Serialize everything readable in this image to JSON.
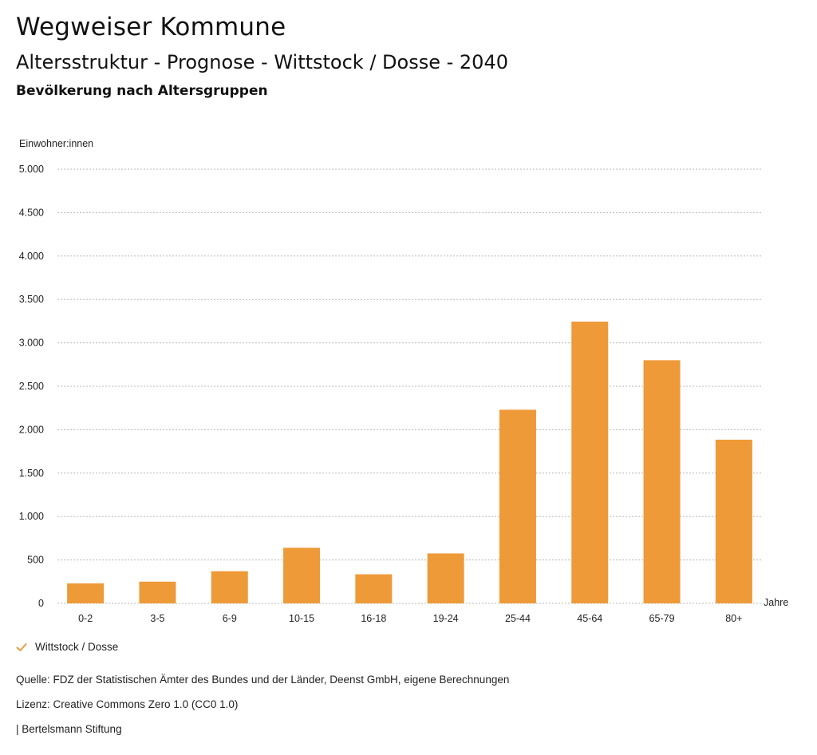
{
  "header": {
    "title": "Wegweiser Kommune",
    "subtitle": "Altersstruktur - Prognose - Wittstock / Dosse - 2040",
    "chart_heading": "Bevölkerung nach Altersgruppen"
  },
  "colors": {
    "bar": "#ee9a38",
    "grid": "#b8b8b8",
    "check": "#ee9a38"
  },
  "legend": {
    "label": "Wittstock / Dosse",
    "icon": "checkmark-icon"
  },
  "footer": {
    "source": "Quelle: FDZ der Statistischen Ämter des Bundes und der Länder, Deenst GmbH, eigene Berechnungen",
    "license": "Lizenz: Creative Commons Zero 1.0 (CC0 1.0)",
    "publisher": "| Bertelsmann Stiftung"
  },
  "chart_data": {
    "type": "bar",
    "ylabel": "Einwohner:innen",
    "xlabel": "Jahre",
    "ylim": [
      0,
      5000
    ],
    "yticks": [
      0,
      500,
      1000,
      1500,
      2000,
      2500,
      3000,
      3500,
      4000,
      4500,
      5000
    ],
    "ytick_labels": [
      "0",
      "500",
      "1.000",
      "1.500",
      "2.000",
      "2.500",
      "3.000",
      "3.500",
      "4.000",
      "4.500",
      "5.000"
    ],
    "grid": true,
    "legend_position": "bottom-left",
    "categories": [
      "0-2",
      "3-5",
      "6-9",
      "10-15",
      "16-18",
      "19-24",
      "25-44",
      "45-64",
      "65-79",
      "80+"
    ],
    "series": [
      {
        "name": "Wittstock / Dosse",
        "values": [
          230,
          250,
          370,
          640,
          335,
          575,
          2230,
          3245,
          2800,
          1885
        ]
      }
    ]
  }
}
